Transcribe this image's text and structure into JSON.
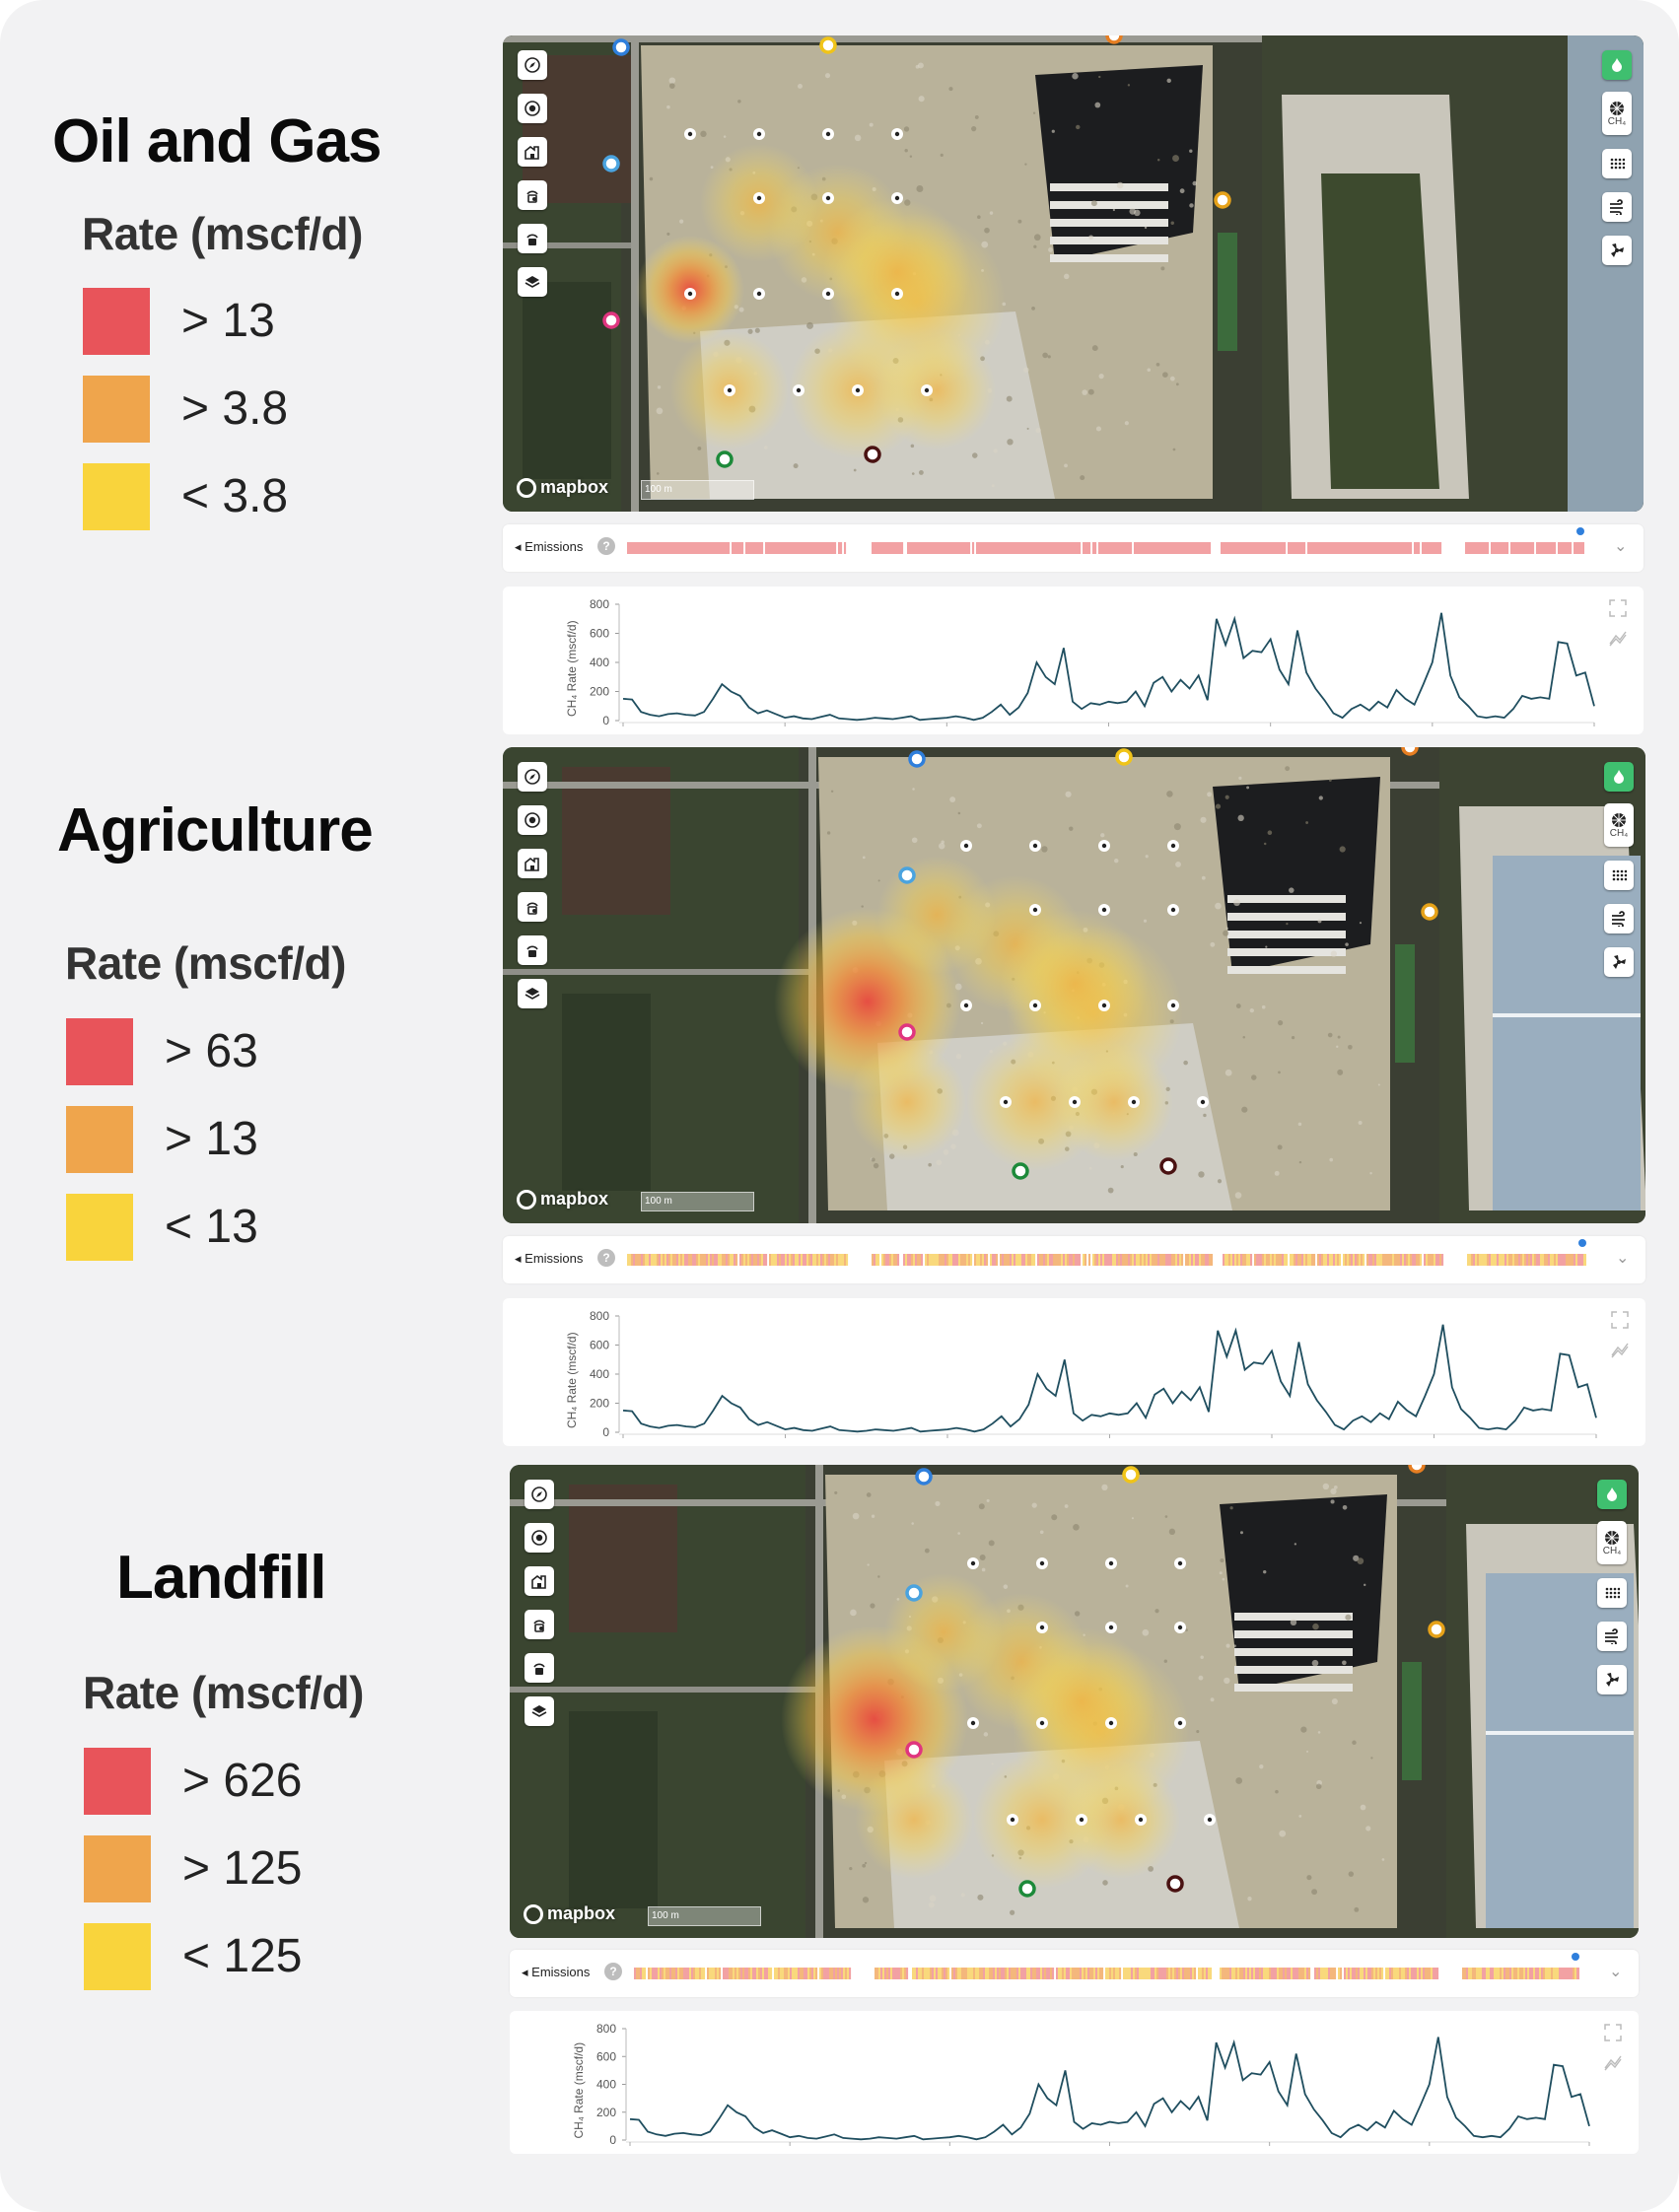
{
  "legends": [
    {
      "title": "Oil and Gas",
      "rate_label": "Rate (mscf/d)",
      "rows": [
        {
          "label": "> 13",
          "color": "#e8545a"
        },
        {
          "label": "> 3.8",
          "color": "#efa54c"
        },
        {
          "label": "< 3.8",
          "color": "#f9d43c"
        }
      ]
    },
    {
      "title": "Agriculture",
      "rate_label": "Rate (mscf/d)",
      "rows": [
        {
          "label": "> 63",
          "color": "#e8545a"
        },
        {
          "label": "> 13",
          "color": "#efa54c"
        },
        {
          "label": "< 13",
          "color": "#f9d43c"
        }
      ]
    },
    {
      "title": "Landfill",
      "rate_label": "Rate (mscf/d)",
      "rows": [
        {
          "label": "> 626",
          "color": "#e8545a"
        },
        {
          "label": "> 125",
          "color": "#efa54c"
        },
        {
          "label": "< 125",
          "color": "#f9d43c"
        }
      ]
    }
  ],
  "panels": [
    {
      "mapbox": "mapbox",
      "scale": "100 m",
      "emissions_label": "Emissions",
      "emissions_help": "?",
      "ch4_label": "CH₄"
    },
    {
      "mapbox": "mapbox",
      "scale": "100 m",
      "emissions_label": "Emissions",
      "emissions_help": "?",
      "ch4_label": "CH₄"
    },
    {
      "mapbox": "mapbox",
      "scale": "100 m",
      "emissions_label": "Emissions",
      "emissions_help": "?",
      "ch4_label": "CH₄"
    }
  ],
  "map_tools": {
    "left": [
      "compass-icon",
      "target-icon",
      "facility-icon",
      "sensor-icon",
      "sensor-lock-icon",
      "layers-icon"
    ],
    "right": [
      "flame-icon",
      "gas-icon",
      "grid-icon",
      "wind-icon",
      "fan-icon"
    ]
  },
  "colors": {
    "high": "#e8545a",
    "mid": "#efa54c",
    "low": "#f9d43c",
    "line": "#1f4e5f",
    "accent": "#3fbf6f"
  },
  "chart_data": {
    "type": "line",
    "ylabel": "CH₄ Rate (mscf/d)",
    "ylim": [
      0,
      800
    ],
    "yticks": [
      0,
      200,
      400,
      600,
      800
    ],
    "values": [
      150,
      145,
      60,
      40,
      30,
      45,
      50,
      40,
      35,
      60,
      150,
      250,
      200,
      170,
      90,
      50,
      70,
      45,
      20,
      30,
      15,
      10,
      25,
      40,
      15,
      10,
      5,
      10,
      20,
      15,
      10,
      20,
      30,
      5,
      10,
      15,
      20,
      30,
      20,
      5,
      20,
      60,
      110,
      40,
      90,
      190,
      400,
      300,
      250,
      500,
      130,
      80,
      120,
      110,
      130,
      120,
      130,
      200,
      100,
      260,
      300,
      200,
      280,
      220,
      310,
      140,
      700,
      520,
      700,
      430,
      480,
      470,
      560,
      350,
      250,
      620,
      330,
      220,
      140,
      50,
      20,
      80,
      110,
      70,
      130,
      90,
      210,
      150,
      110,
      250,
      400,
      740,
      310,
      160,
      100,
      30,
      20,
      30,
      20,
      80,
      170,
      150,
      160,
      150,
      540,
      530,
      310,
      330,
      100
    ]
  }
}
